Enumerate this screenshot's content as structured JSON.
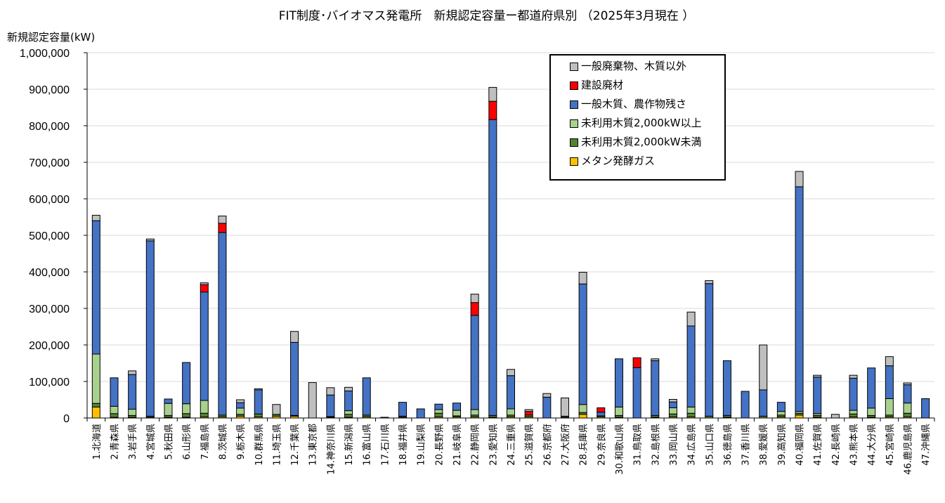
{
  "chart_data": {
    "type": "bar",
    "stacked": true,
    "title": "FIT制度･バイオマス発電所　新規認定容量ー都道府県別 （2025年3月現在 ）",
    "ylabel": "新規認定容量(kW)",
    "ylim": [
      0,
      1000000
    ],
    "yticks": [
      "0",
      "100,000",
      "200,000",
      "300,000",
      "400,000",
      "500,000",
      "600,000",
      "700,000",
      "800,000",
      "900,000",
      "1,000,000"
    ],
    "grid": true,
    "legend_position": "top-right",
    "categories": [
      "1.北海道",
      "2.青森県",
      "3.岩手県",
      "4.宮城県",
      "5.秋田県",
      "6.山形県",
      "7.福島県",
      "8.茨城県",
      "9.栃木県",
      "10.群馬県",
      "11.埼玉県",
      "12.千葉県",
      "13.東京都",
      "14.神奈川県",
      "15.新潟県",
      "16.富山県",
      "17.石川県",
      "18.福井県",
      "19.山梨県",
      "20.長野県",
      "21.岐阜県",
      "22.静岡県",
      "23.愛知県",
      "24.三重県",
      "25.滋賀県",
      "26.京都府",
      "27.大阪府",
      "28.兵庫県",
      "29.奈良県",
      "30.和歌山県",
      "31.鳥取県",
      "32.島根県",
      "33.岡山県",
      "34.広島県",
      "35.山口県",
      "36.徳島県",
      "37.香川県",
      "38.愛媛県",
      "39.高知県",
      "40.福岡県",
      "41.佐賀県",
      "42.長崎県",
      "43.熊本県",
      "44.大分県",
      "45.宮崎県",
      "46.鹿児島県",
      "47.沖縄県"
    ],
    "series": [
      {
        "name": "メタン発酵ガス",
        "color": "#FFC000",
        "values": [
          30000,
          2000,
          2000,
          2000,
          2000,
          2000,
          3000,
          3000,
          5000,
          3000,
          5000,
          5000,
          0,
          2000,
          2000,
          3000,
          2000,
          2000,
          0,
          3000,
          3000,
          3000,
          2000,
          3000,
          3000,
          0,
          2000,
          10000,
          3000,
          2000,
          0,
          2000,
          3000,
          3000,
          0,
          2000,
          0,
          0,
          3000,
          8000,
          2000,
          0,
          3000,
          2000,
          3000,
          3000,
          0
        ]
      },
      {
        "name": "未利用木質2,000kW未満",
        "color": "#548235",
        "values": [
          10000,
          10000,
          5000,
          3000,
          5000,
          10000,
          10000,
          5000,
          5000,
          8000,
          5000,
          2000,
          0,
          2000,
          8000,
          5000,
          0,
          3000,
          0,
          10000,
          3000,
          5000,
          5000,
          5000,
          5000,
          0,
          3000,
          5000,
          3000,
          5000,
          0,
          5000,
          8000,
          10000,
          5000,
          5000,
          0,
          5000,
          5000,
          5000,
          5000,
          0,
          8000,
          5000,
          5000,
          10000,
          0
        ]
      },
      {
        "name": "未利用木質2,000kW以上",
        "color": "#A9D18E",
        "values": [
          135000,
          20000,
          17000,
          0,
          33000,
          27000,
          35000,
          0,
          17000,
          0,
          0,
          0,
          0,
          0,
          10000,
          0,
          0,
          0,
          0,
          10000,
          15000,
          15000,
          0,
          17000,
          0,
          0,
          0,
          22000,
          0,
          23000,
          0,
          0,
          17000,
          17000,
          0,
          0,
          0,
          0,
          10000,
          5000,
          5000,
          0,
          10000,
          20000,
          45000,
          28000,
          0
        ]
      },
      {
        "name": "一般木質、農作物残さ",
        "color": "#4472C4",
        "values": [
          365000,
          78000,
          95000,
          480000,
          12000,
          113000,
          297000,
          500000,
          15000,
          66000,
          0,
          200000,
          0,
          59000,
          54000,
          102000,
          0,
          38000,
          25000,
          15000,
          20000,
          258000,
          810000,
          91000,
          0,
          57000,
          0,
          330000,
          10000,
          132000,
          138000,
          150000,
          16000,
          222000,
          363000,
          150000,
          73000,
          72000,
          25000,
          615000,
          100000,
          0,
          88000,
          110000,
          90000,
          50000,
          53000
        ]
      },
      {
        "name": "建設廃材",
        "color": "#FF0000",
        "values": [
          0,
          0,
          0,
          0,
          0,
          0,
          20000,
          25000,
          0,
          0,
          0,
          0,
          0,
          0,
          0,
          0,
          0,
          0,
          0,
          0,
          0,
          35000,
          50000,
          0,
          10000,
          0,
          0,
          0,
          12000,
          0,
          27000,
          0,
          0,
          0,
          0,
          0,
          0,
          0,
          0,
          0,
          0,
          0,
          0,
          0,
          0,
          0,
          0
        ]
      },
      {
        "name": "一般廃棄物、木質以外",
        "color": "#BFBFBF",
        "values": [
          15000,
          0,
          10000,
          5000,
          0,
          0,
          5000,
          20000,
          8000,
          3000,
          27000,
          30000,
          97000,
          20000,
          10000,
          0,
          0,
          0,
          0,
          0,
          0,
          23000,
          38000,
          17000,
          5000,
          10000,
          50000,
          32000,
          0,
          0,
          0,
          5000,
          7000,
          38000,
          8000,
          0,
          0,
          123000,
          0,
          42000,
          5000,
          10000,
          8000,
          0,
          25000,
          5000,
          0
        ]
      }
    ]
  }
}
